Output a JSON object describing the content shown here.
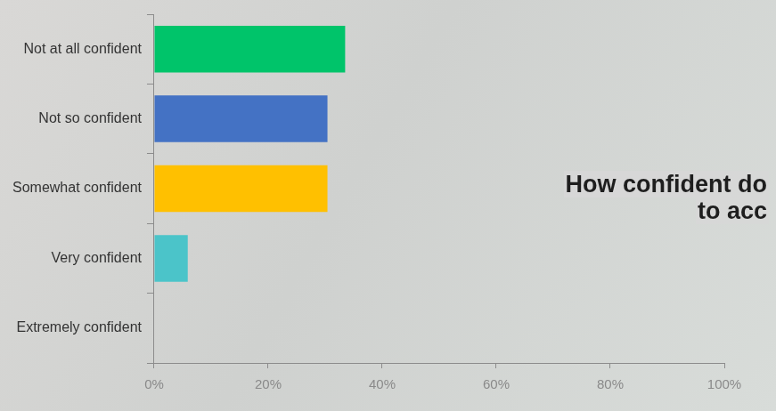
{
  "chart_data": {
    "type": "bar",
    "orientation": "horizontal",
    "title": [
      "How confident do",
      "to acc"
    ],
    "categories": [
      "Not at all confident",
      "Not so confident",
      "Somewhat confident",
      "Very confident",
      "Extremely confident"
    ],
    "values": [
      33.5,
      30.4,
      30.4,
      5.9,
      0
    ],
    "colors": [
      "#00c46a",
      "#4472c4",
      "#ffc000",
      "#4bc4c9",
      "#5b9bd5"
    ],
    "xlim": [
      0,
      100
    ],
    "xticks": [
      {
        "value": 0,
        "label": "0%"
      },
      {
        "value": 20,
        "label": "20%"
      },
      {
        "value": 40,
        "label": "40%"
      },
      {
        "value": 60,
        "label": "60%"
      },
      {
        "value": 80,
        "label": "80%"
      },
      {
        "value": 100,
        "label": "100%"
      }
    ],
    "grid": false
  }
}
